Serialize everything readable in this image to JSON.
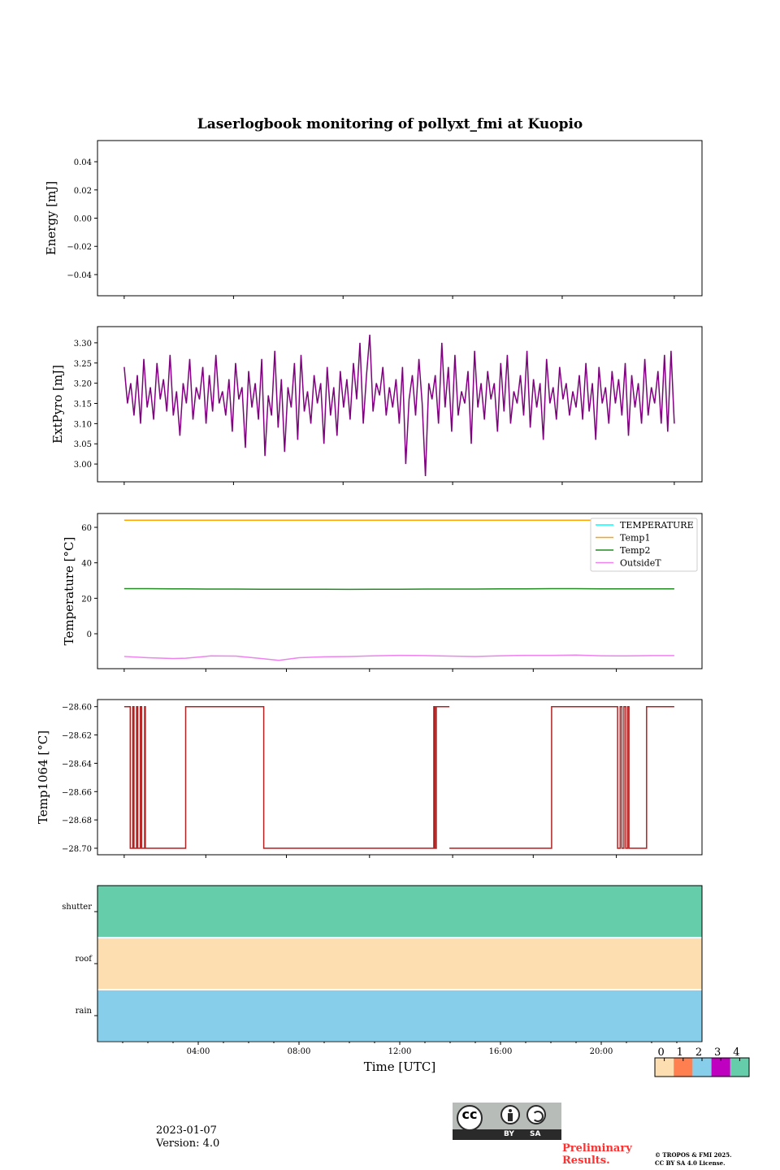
{
  "chart_data": [
    {
      "type": "line",
      "title": "Laserlogbook monitoring of pollyxt_fmi at Kuopio",
      "ylabel": "Energy [mJ]",
      "ylim": [
        -0.055,
        0.055
      ],
      "yticks": [
        0.04,
        0.02,
        0.0,
        -0.02,
        -0.04
      ],
      "ytick_labels": [
        "0.04",
        "0.02",
        "0.00",
        "−0.02",
        "−0.04"
      ],
      "series": []
    },
    {
      "type": "line",
      "ylabel": "ExtPyro [mJ]",
      "ylim": [
        2.956,
        3.34
      ],
      "yticks": [
        3.3,
        3.25,
        3.2,
        3.15,
        3.1,
        3.05,
        3.0
      ],
      "ytick_labels": [
        "3.30",
        "3.25",
        "3.20",
        "3.15",
        "3.10",
        "3.05",
        "3.00"
      ],
      "color": "#800080",
      "x_range_hours": [
        1.06,
        22.9
      ],
      "values": [
        3.24,
        3.15,
        3.2,
        3.12,
        3.22,
        3.1,
        3.26,
        3.14,
        3.19,
        3.11,
        3.25,
        3.16,
        3.21,
        3.13,
        3.27,
        3.12,
        3.18,
        3.07,
        3.2,
        3.15,
        3.26,
        3.11,
        3.19,
        3.16,
        3.24,
        3.1,
        3.22,
        3.13,
        3.27,
        3.15,
        3.18,
        3.12,
        3.21,
        3.08,
        3.25,
        3.16,
        3.19,
        3.04,
        3.23,
        3.14,
        3.2,
        3.11,
        3.26,
        3.02,
        3.17,
        3.12,
        3.28,
        3.09,
        3.21,
        3.03,
        3.19,
        3.14,
        3.25,
        3.06,
        3.27,
        3.13,
        3.18,
        3.1,
        3.22,
        3.15,
        3.2,
        3.05,
        3.24,
        3.12,
        3.19,
        3.07,
        3.23,
        3.14,
        3.21,
        3.11,
        3.25,
        3.16,
        3.3,
        3.1,
        3.22,
        3.32,
        3.13,
        3.2,
        3.17,
        3.24,
        3.12,
        3.19,
        3.14,
        3.21,
        3.1,
        3.24,
        3.0,
        3.16,
        3.22,
        3.12,
        3.26,
        3.15,
        2.97,
        3.2,
        3.16,
        3.22,
        3.1,
        3.3,
        3.14,
        3.24,
        3.08,
        3.27,
        3.12,
        3.18,
        3.15,
        3.23,
        3.05,
        3.28,
        3.14,
        3.2,
        3.11,
        3.23,
        3.16,
        3.2,
        3.08,
        3.25,
        3.13,
        3.27,
        3.1,
        3.18,
        3.15,
        3.22,
        3.12,
        3.28,
        3.09,
        3.21,
        3.14,
        3.2,
        3.06,
        3.26,
        3.15,
        3.19,
        3.11,
        3.24,
        3.16,
        3.2,
        3.12,
        3.18,
        3.14,
        3.22,
        3.11,
        3.25,
        3.13,
        3.2,
        3.06,
        3.24,
        3.15,
        3.19,
        3.1,
        3.23,
        3.15,
        3.21,
        3.12,
        3.25,
        3.07,
        3.22,
        3.14,
        3.2,
        3.1,
        3.26,
        3.12,
        3.19,
        3.15,
        3.23,
        3.1,
        3.27,
        3.08,
        3.28,
        3.1
      ]
    },
    {
      "type": "line",
      "ylabel": "Temperature [°C]",
      "ylim": [
        -19.7,
        67.8
      ],
      "yticks": [
        60,
        40,
        20,
        0
      ],
      "ytick_labels": [
        "60",
        "40",
        "20",
        "0"
      ],
      "legend_placement": "top-right",
      "x_hours": [
        1.06,
        2,
        3,
        3.5,
        4.5,
        5.5,
        6.5,
        7.2,
        8,
        9,
        10,
        11,
        12,
        13,
        14,
        15,
        16,
        17,
        18,
        19,
        20,
        21,
        22,
        22.9
      ],
      "series": [
        {
          "name": "TEMPERATURE",
          "color": "#00ffff",
          "values": []
        },
        {
          "name": "Temp1",
          "color": "#ffa500",
          "values": [
            64,
            64,
            64,
            64,
            64,
            64,
            64,
            64,
            64,
            64,
            64,
            64,
            64,
            64,
            64,
            64,
            64,
            64,
            64,
            64,
            64,
            64,
            64,
            64
          ]
        },
        {
          "name": "Temp2",
          "color": "#228b22",
          "values": [
            25.4,
            25.4,
            25.3,
            25.3,
            25.2,
            25.2,
            25.1,
            25.1,
            25.1,
            25.1,
            25.0,
            25.1,
            25.1,
            25.2,
            25.2,
            25.2,
            25.3,
            25.3,
            25.4,
            25.4,
            25.3,
            25.3,
            25.3,
            25.3
          ]
        },
        {
          "name": "OutsideT",
          "color": "#ee82ee",
          "values": [
            -12.8,
            -13.5,
            -14.0,
            -13.8,
            -12.5,
            -12.6,
            -14.0,
            -15.0,
            -13.5,
            -13.0,
            -12.8,
            -12.4,
            -12.2,
            -12.3,
            -12.6,
            -12.8,
            -12.4,
            -12.2,
            -12.2,
            -12.0,
            -12.4,
            -12.5,
            -12.3,
            -12.3
          ]
        }
      ]
    },
    {
      "type": "line",
      "ylabel": "Temp1064 [°C]",
      "ylim": [
        -28.7046,
        -28.595
      ],
      "yticks": [
        -28.6,
        -28.62,
        -28.64,
        -28.66,
        -28.68,
        -28.7
      ],
      "ytick_labels": [
        "−28.60",
        "−28.62",
        "−28.64",
        "−28.66",
        "−28.68",
        "−28.70"
      ],
      "color": "#b22222",
      "segments": [
        [
          [
            1.06,
            -28.6
          ],
          [
            1.3,
            -28.6
          ],
          [
            1.3,
            -28.7
          ],
          [
            1.4,
            -28.7
          ],
          [
            1.4,
            -28.6
          ],
          [
            1.45,
            -28.6
          ],
          [
            1.45,
            -28.7
          ],
          [
            1.55,
            -28.7
          ],
          [
            1.55,
            -28.6
          ],
          [
            1.6,
            -28.6
          ],
          [
            1.6,
            -28.7
          ],
          [
            1.7,
            -28.7
          ],
          [
            1.7,
            -28.6
          ],
          [
            1.75,
            -28.6
          ],
          [
            1.75,
            -28.7
          ],
          [
            1.87,
            -28.7
          ],
          [
            1.87,
            -28.6
          ],
          [
            1.9,
            -28.6
          ],
          [
            1.9,
            -28.7
          ],
          [
            3.5,
            -28.7
          ],
          [
            3.5,
            -28.6
          ],
          [
            6.6,
            -28.6
          ],
          [
            6.6,
            -28.7
          ],
          [
            13.35,
            -28.7
          ],
          [
            13.35,
            -28.6
          ],
          [
            13.4,
            -28.6
          ],
          [
            13.4,
            -28.7
          ],
          [
            13.45,
            -28.7
          ],
          [
            13.45,
            -28.6
          ],
          [
            13.97,
            -28.6
          ]
        ],
        [
          [
            13.97,
            -28.7
          ],
          [
            18.03,
            -28.7
          ],
          [
            18.03,
            -28.6
          ],
          [
            20.65,
            -28.6
          ],
          [
            20.65,
            -28.7
          ],
          [
            20.75,
            -28.7
          ],
          [
            20.75,
            -28.6
          ],
          [
            20.82,
            -28.6
          ],
          [
            20.82,
            -28.7
          ],
          [
            20.9,
            -28.7
          ],
          [
            20.9,
            -28.6
          ],
          [
            20.97,
            -28.6
          ],
          [
            20.97,
            -28.7
          ],
          [
            21.05,
            -28.7
          ],
          [
            21.05,
            -28.6
          ],
          [
            21.1,
            -28.6
          ],
          [
            21.1,
            -28.7
          ],
          [
            21.8,
            -28.7
          ],
          [
            21.8,
            -28.6
          ],
          [
            22.9,
            -28.6
          ]
        ]
      ]
    },
    {
      "type": "heatmap",
      "rows": [
        "shutter",
        "roof",
        "rain"
      ],
      "row_values": [
        4,
        0,
        2
      ],
      "xlabel": "Time [UTC]",
      "xlim_hours": [
        0,
        24
      ],
      "xticks": [
        4,
        8,
        12,
        16,
        20
      ],
      "xtick_labels": [
        "04:00",
        "08:00",
        "12:00",
        "16:00",
        "20:00"
      ],
      "colorbar": {
        "ticks": [
          "0",
          "1",
          "2",
          "3",
          "4"
        ],
        "colors": [
          "#fddeb0",
          "#ff7f50",
          "#87ceeb",
          "#c000c0",
          "#66cdaa"
        ]
      }
    }
  ],
  "footer": {
    "date": "2023-01-07",
    "version": "Version: 4.0",
    "preliminary_1": "Preliminary",
    "preliminary_2": "Results.",
    "copyright_1": "© TROPOS & FMI 2025.",
    "copyright_2": "CC BY SA 4.0 License.",
    "license_by": "BY",
    "license_sa": "SA",
    "license_cc": "cc"
  }
}
